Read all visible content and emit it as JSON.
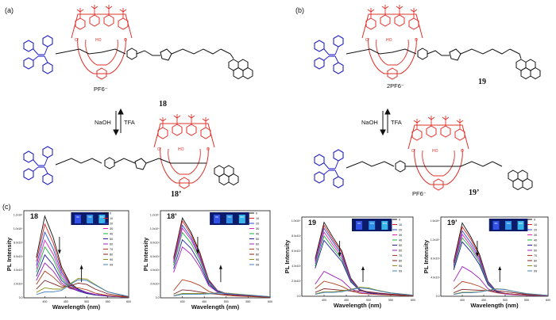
{
  "panels": {
    "a": "(a)",
    "b": "(b)",
    "c": "(c)"
  },
  "compounds": {
    "c18": "18",
    "c18p": "18’",
    "c19": "19",
    "c19p": "19’"
  },
  "counterions": {
    "pf6_a": "PF6⁻",
    "pf6_b_top": "2PF6⁻",
    "pf6_b_bot": "PF6⁻"
  },
  "conditions": {
    "base": "NaOH",
    "acid": "TFA"
  },
  "colors": {
    "red_macrocycle": "#e0302a",
    "blue_tpe": "#2424c8",
    "black_chain": "#111111"
  },
  "plots": {
    "ylabel": "PL Intensity",
    "xlabel": "Wavelength (nm)",
    "legend": [
      "0",
      "10",
      "20",
      "30",
      "40",
      "50",
      "60",
      "70",
      "80",
      "90",
      "99"
    ],
    "vial_labels": [
      "0%",
      "70%",
      "90%"
    ]
  },
  "chart_data": [
    {
      "type": "line",
      "title": "18",
      "xlabel": "Wavelength (nm)",
      "ylabel": "PL Intensity",
      "xlim": [
        350,
        600
      ],
      "ylim": [
        0,
        13000
      ],
      "x_ticks": [
        "400",
        "450",
        "500",
        "550",
        "600"
      ],
      "y_ticks": [
        "0.0",
        "2.0x10³",
        "4.0x10³",
        "6.0x10³",
        "8.0x10³",
        "1.0x10⁴",
        "1.2x10⁴"
      ],
      "x": [
        380,
        400,
        420,
        440,
        460,
        480,
        500,
        520,
        550,
        600
      ],
      "series": [
        {
          "name": "0",
          "values": [
            6000,
            12200,
            9000,
            4600,
            2200,
            1300,
            800,
            500,
            300,
            100
          ]
        },
        {
          "name": "10",
          "values": [
            5400,
            11000,
            8200,
            4200,
            2000,
            1200,
            750,
            480,
            280,
            100
          ]
        },
        {
          "name": "20",
          "values": [
            4800,
            9800,
            7300,
            3800,
            1900,
            1200,
            800,
            500,
            300,
            100
          ]
        },
        {
          "name": "30",
          "values": [
            4300,
            8600,
            6500,
            3400,
            1700,
            1100,
            700,
            450,
            260,
            90
          ]
        },
        {
          "name": "40",
          "values": [
            3800,
            7600,
            5800,
            3000,
            1600,
            1000,
            650,
            420,
            250,
            90
          ]
        },
        {
          "name": "50",
          "values": [
            3200,
            6400,
            4900,
            2600,
            1500,
            1000,
            650,
            420,
            250,
            90
          ]
        },
        {
          "name": "60",
          "values": [
            2600,
            5200,
            4000,
            2200,
            1400,
            1100,
            800,
            500,
            280,
            90
          ]
        },
        {
          "name": "70",
          "values": [
            2000,
            4000,
            3100,
            1900,
            1500,
            1500,
            1200,
            700,
            350,
            100
          ]
        },
        {
          "name": "80",
          "values": [
            1300,
            2600,
            2100,
            1600,
            1800,
            2200,
            2000,
            1300,
            600,
            150
          ]
        },
        {
          "name": "90",
          "values": [
            800,
            1500,
            1300,
            1300,
            2100,
            2900,
            2800,
            2000,
            900,
            200
          ]
        },
        {
          "name": "99",
          "values": [
            500,
            900,
            900,
            1100,
            2000,
            2700,
            2600,
            1900,
            900,
            200
          ]
        }
      ]
    },
    {
      "type": "line",
      "title": "18’",
      "xlabel": "Wavelength (nm)",
      "ylabel": "PL Intensity",
      "xlim": [
        350,
        600
      ],
      "ylim": [
        0,
        12000
      ],
      "x_ticks": [
        "400",
        "450",
        "500",
        "550",
        "600"
      ],
      "y_ticks": [
        "0.0",
        "2.0x10³",
        "4.0x10³",
        "6.0x10³",
        "8.0x10³",
        "1.0x10⁴",
        "1.2x10⁴"
      ],
      "x": [
        380,
        400,
        420,
        440,
        460,
        480,
        500,
        520,
        550,
        600
      ],
      "series": [
        {
          "name": "0",
          "values": [
            5500,
            11000,
            9000,
            6200,
            2500,
            1000,
            600,
            400,
            250,
            100
          ]
        },
        {
          "name": "10",
          "values": [
            5300,
            10600,
            8700,
            6000,
            2400,
            1000,
            600,
            400,
            250,
            100
          ]
        },
        {
          "name": "20",
          "values": [
            5000,
            10000,
            8300,
            5700,
            2300,
            950,
            600,
            400,
            250,
            100
          ]
        },
        {
          "name": "30",
          "values": [
            4800,
            9600,
            8000,
            5500,
            2200,
            900,
            550,
            380,
            240,
            100
          ]
        },
        {
          "name": "40",
          "values": [
            4500,
            9000,
            7500,
            5200,
            2100,
            900,
            550,
            380,
            240,
            100
          ]
        },
        {
          "name": "50",
          "values": [
            4000,
            8000,
            6800,
            4700,
            1900,
            850,
            520,
            360,
            230,
            100
          ]
        },
        {
          "name": "60",
          "values": [
            3500,
            7000,
            6000,
            4200,
            1700,
            800,
            500,
            350,
            220,
            100
          ]
        },
        {
          "name": "70",
          "values": [
            1000,
            2500,
            2200,
            1700,
            900,
            500,
            350,
            250,
            180,
            80
          ]
        },
        {
          "name": "80",
          "values": [
            500,
            1100,
            1000,
            800,
            600,
            500,
            450,
            400,
            300,
            120
          ]
        },
        {
          "name": "90",
          "values": [
            300,
            600,
            600,
            600,
            600,
            700,
            650,
            550,
            400,
            150
          ]
        },
        {
          "name": "99",
          "values": [
            250,
            500,
            500,
            500,
            550,
            650,
            600,
            500,
            380,
            150
          ]
        }
      ]
    },
    {
      "type": "line",
      "title": "19",
      "xlabel": "Wavelength (nm)",
      "ylabel": "PL Intensity",
      "xlim": [
        350,
        600
      ],
      "ylim": [
        0,
        10500
      ],
      "x_ticks": [
        "400",
        "450",
        "500",
        "550",
        "600"
      ],
      "y_ticks": [
        "0.0",
        "2.0x10³",
        "4.0x10³",
        "6.0x10³",
        "8.0x10³",
        "1.0x10⁴"
      ],
      "x": [
        380,
        400,
        420,
        440,
        460,
        480,
        500,
        520,
        550,
        600
      ],
      "series": [
        {
          "name": "0",
          "values": [
            5000,
            9800,
            7800,
            6000,
            2400,
            900,
            500,
            350,
            200,
            80
          ]
        },
        {
          "name": "10",
          "values": [
            4800,
            9400,
            7500,
            5800,
            2300,
            880,
            500,
            350,
            200,
            80
          ]
        },
        {
          "name": "20",
          "values": [
            4600,
            9000,
            7200,
            5500,
            2200,
            850,
            480,
            340,
            200,
            80
          ]
        },
        {
          "name": "30",
          "values": [
            4300,
            8500,
            6800,
            5200,
            2100,
            820,
            470,
            330,
            200,
            80
          ]
        },
        {
          "name": "40",
          "values": [
            4000,
            8000,
            6400,
            4900,
            2000,
            800,
            460,
            320,
            200,
            80
          ]
        },
        {
          "name": "50",
          "values": [
            3700,
            7400,
            6000,
            4600,
            1900,
            780,
            450,
            320,
            200,
            80
          ]
        },
        {
          "name": "60",
          "values": [
            1600,
            3300,
            2700,
            2100,
            1000,
            500,
            350,
            260,
            180,
            70
          ]
        },
        {
          "name": "70",
          "values": [
            1000,
            2000,
            1700,
            1300,
            700,
            400,
            300,
            230,
            160,
            60
          ]
        },
        {
          "name": "80",
          "values": [
            500,
            1000,
            900,
            800,
            700,
            700,
            600,
            450,
            280,
            100
          ]
        },
        {
          "name": "90",
          "values": [
            300,
            600,
            600,
            700,
            900,
            1200,
            1100,
            800,
            450,
            150
          ]
        },
        {
          "name": "99",
          "values": [
            250,
            500,
            500,
            600,
            850,
            1100,
            1000,
            750,
            420,
            140
          ]
        }
      ]
    },
    {
      "type": "line",
      "title": "19’",
      "xlabel": "Wavelength (nm)",
      "ylabel": "PL Intensity",
      "xlim": [
        350,
        600
      ],
      "ylim": [
        0,
        16000
      ],
      "x_ticks": [
        "400",
        "450",
        "500",
        "550",
        "600"
      ],
      "y_ticks": [
        "0.0",
        "4.0x10³",
        "8.0x10³",
        "1.2x10⁴",
        "1.6x10⁴"
      ],
      "x": [
        380,
        400,
        420,
        440,
        460,
        480,
        500,
        520,
        550,
        600
      ],
      "series": [
        {
          "name": "0",
          "values": [
            7000,
            14800,
            12000,
            8500,
            3000,
            1000,
            600,
            400,
            250,
            100
          ]
        },
        {
          "name": "10",
          "values": [
            6700,
            14000,
            11500,
            8100,
            2900,
            980,
            580,
            390,
            240,
            100
          ]
        },
        {
          "name": "20",
          "values": [
            6300,
            13200,
            10800,
            7700,
            2800,
            950,
            560,
            380,
            240,
            100
          ]
        },
        {
          "name": "30",
          "values": [
            6000,
            12500,
            10200,
            7300,
            2600,
            920,
            540,
            370,
            230,
            100
          ]
        },
        {
          "name": "40",
          "values": [
            5700,
            11800,
            9700,
            6900,
            2500,
            900,
            520,
            360,
            230,
            100
          ]
        },
        {
          "name": "50",
          "values": [
            5300,
            11000,
            9000,
            6400,
            2300,
            860,
            500,
            350,
            220,
            100
          ]
        },
        {
          "name": "60",
          "values": [
            3000,
            6000,
            5000,
            3600,
            1500,
            700,
            450,
            320,
            200,
            90
          ]
        },
        {
          "name": "70",
          "values": [
            1500,
            3000,
            2600,
            2000,
            1100,
            700,
            550,
            420,
            280,
            110
          ]
        },
        {
          "name": "80",
          "values": [
            700,
            1400,
            1300,
            1200,
            1100,
            1100,
            950,
            700,
            400,
            150
          ]
        },
        {
          "name": "90",
          "values": [
            400,
            800,
            800,
            900,
            1200,
            1500,
            1400,
            1000,
            550,
            180
          ]
        },
        {
          "name": "99",
          "values": [
            350,
            700,
            700,
            850,
            1150,
            1450,
            1350,
            950,
            520,
            170
          ]
        }
      ]
    }
  ]
}
